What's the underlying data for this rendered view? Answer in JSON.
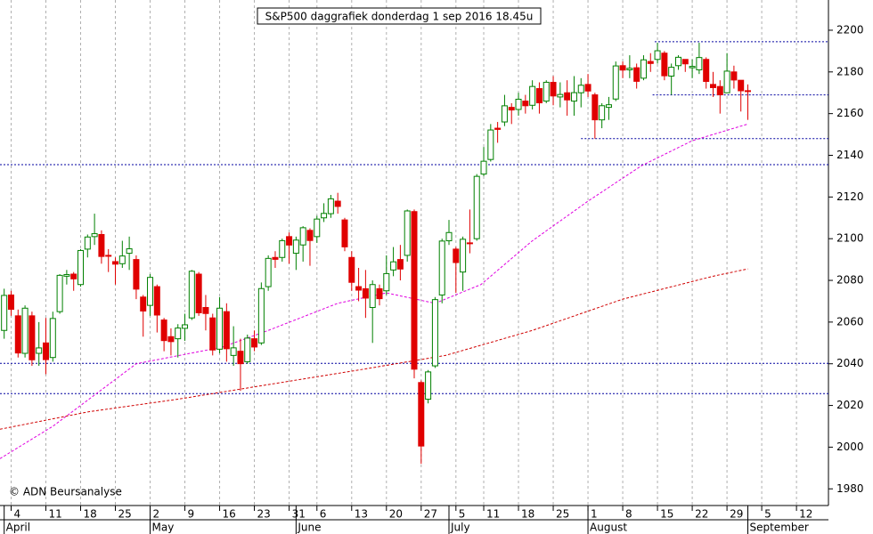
{
  "chart_data": {
    "type": "candlestick",
    "title": "S&P500 daggrafiek donderdag 1 sep 2016 18.45u",
    "copyright": "© ADN Beursanalyse",
    "up_color": "#008000",
    "down_color": "#e00000",
    "xlim": [
      -0.6,
      118.6
    ],
    "ylim": [
      1972,
      2214.5
    ],
    "yticks": [
      1980,
      2000,
      2020,
      2040,
      2060,
      2080,
      2100,
      2120,
      2140,
      2160,
      2180,
      2200
    ],
    "xticks": [
      {
        "value": 1,
        "label": "4"
      },
      {
        "value": 6,
        "label": "11"
      },
      {
        "value": 11,
        "label": "18"
      },
      {
        "value": 16,
        "label": "25"
      },
      {
        "value": 21,
        "label": "2"
      },
      {
        "value": 26,
        "label": "9"
      },
      {
        "value": 31,
        "label": "16"
      },
      {
        "value": 36,
        "label": "23"
      },
      {
        "value": 41,
        "label": "31"
      },
      {
        "value": 45,
        "label": "6"
      },
      {
        "value": 50,
        "label": "13"
      },
      {
        "value": 55,
        "label": "20"
      },
      {
        "value": 60,
        "label": "27"
      },
      {
        "value": 65,
        "label": "5"
      },
      {
        "value": 69,
        "label": "11"
      },
      {
        "value": 74,
        "label": "18"
      },
      {
        "value": 79,
        "label": "25"
      },
      {
        "value": 84,
        "label": "1"
      },
      {
        "value": 89,
        "label": "8"
      },
      {
        "value": 94,
        "label": "15"
      },
      {
        "value": 99,
        "label": "22"
      },
      {
        "value": 104,
        "label": "29"
      },
      {
        "value": 109,
        "label": "5"
      },
      {
        "value": 114,
        "label": "12"
      }
    ],
    "months": [
      {
        "value": 0,
        "label": "April"
      },
      {
        "value": 21,
        "label": "May"
      },
      {
        "value": 42,
        "label": "June"
      },
      {
        "value": 64,
        "label": "July"
      },
      {
        "value": 84,
        "label": "August"
      },
      {
        "value": 107,
        "label": "September"
      }
    ],
    "open": [
      2056,
      2073,
      2063,
      2045,
      2063,
      2045,
      2050,
      2043,
      2065,
      2082,
      2083,
      2078,
      2095,
      2101,
      2102,
      2092,
      2089,
      2088,
      2093,
      2090,
      2072,
      2068,
      2077,
      2061,
      2053,
      2052,
      2057,
      2062,
      2083,
      2067,
      2062,
      2047,
      2065,
      2044,
      2046,
      2041,
      2052,
      2050,
      2077,
      2091,
      2091,
      2101,
      2093,
      2097,
      2104,
      2101,
      2110,
      2112,
      2118,
      2109,
      2091,
      2077,
      2076,
      2067,
      2076,
      2075,
      2085,
      2090,
      2092,
      2113,
      2031,
      2023,
      2039,
      2073,
      2099,
      2095,
      2084,
      2098,
      2100,
      2131,
      2138,
      2153,
      2156,
      2163,
      2162,
      2166,
      2164,
      2172,
      2166,
      2175,
      2168,
      2170,
      2166,
      2170,
      2174,
      2169,
      2157,
      2163,
      2167,
      2183,
      2181,
      2182,
      2177,
      2185,
      2186,
      2189,
      2178,
      2183,
      2186,
      2182,
      2181,
      2186,
      2174,
      2173,
      2170,
      2180,
      2176,
      2171
    ],
    "high": [
      2076,
      2075,
      2066,
      2068,
      2065,
      2060,
      2062,
      2065,
      2083,
      2085,
      2084,
      2095,
      2102,
      2112,
      2104,
      2095,
      2091,
      2099,
      2101,
      2092,
      2073,
      2083,
      2078,
      2062,
      2057,
      2059,
      2064,
      2085,
      2084,
      2073,
      2064,
      2072,
      2069,
      2058,
      2052,
      2054,
      2056,
      2079,
      2092,
      2094,
      2100,
      2103,
      2101,
      2106,
      2105,
      2111,
      2117,
      2121,
      2122,
      2110,
      2094,
      2086,
      2085,
      2080,
      2078,
      2092,
      2096,
      2097,
      2114,
      2114,
      2032,
      2037,
      2072,
      2100,
      2109,
      2096,
      2101,
      2114,
      2131,
      2144,
      2155,
      2156,
      2169,
      2165,
      2170,
      2169,
      2176,
      2175,
      2176,
      2178,
      2175,
      2176,
      2178,
      2177,
      2179,
      2170,
      2165,
      2168,
      2185,
      2185,
      2188,
      2184,
      2188,
      2189,
      2194,
      2190,
      2184,
      2188,
      2186,
      2186,
      2194,
      2187,
      2180,
      2176,
      2189,
      2183,
      2176,
      2174
    ],
    "low": [
      2052,
      2063,
      2043,
      2043,
      2039,
      2039,
      2035,
      2041,
      2064,
      2078,
      2075,
      2077,
      2091,
      2097,
      2088,
      2084,
      2078,
      2086,
      2085,
      2071,
      2053,
      2063,
      2055,
      2046,
      2044,
      2043,
      2051,
      2061,
      2063,
      2056,
      2044,
      2045,
      2041,
      2039,
      2027,
      2040,
      2046,
      2049,
      2075,
      2086,
      2089,
      2088,
      2085,
      2089,
      2087,
      2098,
      2108,
      2110,
      2112,
      2094,
      2075,
      2070,
      2062,
      2050,
      2068,
      2073,
      2082,
      2080,
      2089,
      2033,
      1992,
      2021,
      2038,
      2069,
      2097,
      2074,
      2075,
      2093,
      2099,
      2130,
      2137,
      2146,
      2154,
      2155,
      2159,
      2160,
      2162,
      2160,
      2165,
      2164,
      2163,
      2159,
      2159,
      2163,
      2168,
      2148,
      2153,
      2157,
      2166,
      2177,
      2177,
      2172,
      2176,
      2180,
      2184,
      2176,
      2169,
      2181,
      2180,
      2177,
      2179,
      2172,
      2168,
      2160,
      2170,
      2172,
      2161,
      2157
    ],
    "close": [
      2072.78,
      2066.13,
      2045.17,
      2066.66,
      2041.91,
      2047.6,
      2041.99,
      2061.72,
      2082.42,
      2082.78,
      2080.73,
      2094.34,
      2100.8,
      2102.4,
      2091.48,
      2091.58,
      2087.79,
      2091.7,
      2095.15,
      2075.81,
      2065.3,
      2081.43,
      2063.37,
      2051.12,
      2050.63,
      2057.14,
      2058.69,
      2084.39,
      2064.46,
      2064.11,
      2046.61,
      2066.66,
      2047.21,
      2047.63,
      2040.04,
      2052.32,
      2048.04,
      2076.06,
      2090.54,
      2090.1,
      2099.06,
      2096.95,
      2099.33,
      2105.26,
      2099.13,
      2109.41,
      2112.13,
      2119.12,
      2115.48,
      2096.07,
      2079.06,
      2075.32,
      2071.5,
      2077.99,
      2071.22,
      2083.25,
      2088.9,
      2085.45,
      2113.32,
      2037.41,
      2000.54,
      2036.09,
      2070.77,
      2098.86,
      2102.95,
      2088.55,
      2099.73,
      2097.9,
      2129.9,
      2137.16,
      2152.14,
      2152.43,
      2163.75,
      2161.74,
      2166.89,
      2163.78,
      2173.02,
      2165.17,
      2175.03,
      2168.48,
      2169.18,
      2166.58,
      2170.06,
      2173.6,
      2170.84,
      2157.03,
      2163.79,
      2164.25,
      2182.87,
      2180.89,
      2181.74,
      2175.49,
      2185.79,
      2184.05,
      2190.15,
      2178.15,
      2182.22,
      2187.02,
      2183.87,
      2182.64,
      2186.9,
      2175.44,
      2172.47,
      2169.04,
      2180.38,
      2176.12,
      2170.95,
      2170.86
    ],
    "moving_averages": [
      {
        "color": "#e000e0",
        "x": [
          -0.6,
          7,
          19,
          31.4,
          38,
          48,
          55,
          62,
          68.6,
          76,
          84,
          91.7,
          99,
          107
        ],
        "values": [
          1994.5,
          2010,
          2040,
          2048,
          2056,
          2069,
          2074,
          2069,
          2078,
          2099,
          2118,
          2135,
          2147,
          2155
        ]
      },
      {
        "color": "#d00000",
        "x": [
          -0.6,
          12.2,
          25,
          38,
          51,
          63.5,
          76,
          89,
          102,
          107
        ],
        "values": [
          2008.6,
          2017,
          2023,
          2030,
          2037,
          2044,
          2056,
          2071,
          2082,
          2085.5
        ]
      }
    ],
    "hlines_color": "#0000a0",
    "hlines": [
      {
        "value": 2194.5,
        "x0": 93.6
      },
      {
        "value": 2169,
        "x0": 93.3
      },
      {
        "value": 2148,
        "x0": 83
      },
      {
        "value": 2135.5
      },
      {
        "value": 2040.2
      },
      {
        "value": 2025.7
      }
    ]
  }
}
